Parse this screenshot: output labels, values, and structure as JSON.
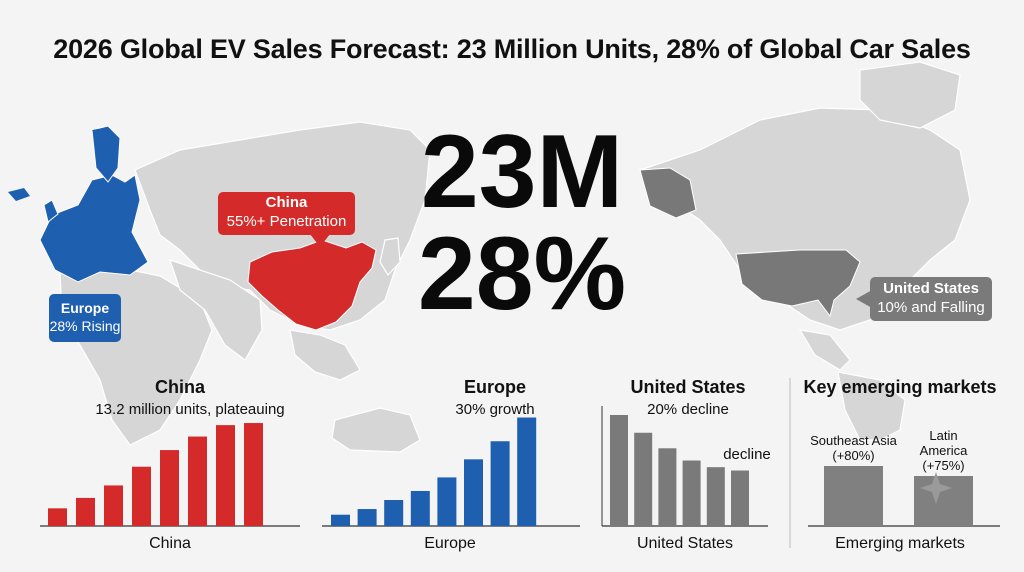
{
  "title": "2026 Global EV Sales Forecast: 23 Million Units, 28% of Global Car Sales",
  "headline": {
    "units": "23M",
    "share": "28%"
  },
  "callouts": {
    "china": {
      "name": "China",
      "text": "55%+ Penetration"
    },
    "europe": {
      "name": "Europe",
      "text": "28% Rising"
    },
    "us": {
      "name": "United States",
      "text": "10% and Falling"
    }
  },
  "colors": {
    "china": "#d42a2a",
    "europe": "#1f5fb0",
    "us": "#7a7a7a",
    "emerging": "#808080",
    "land": "#d6d6d6"
  },
  "chart_data": [
    {
      "type": "bar",
      "title": "China",
      "subtitle": "13.2 million units, plateauing",
      "xlabel": "China",
      "values": [
        1.7,
        2.7,
        3.9,
        5.7,
        7.3,
        8.6,
        9.7,
        9.9
      ],
      "ylim": [
        0,
        10
      ]
    },
    {
      "type": "bar",
      "title": "Europe",
      "subtitle": "30% growth",
      "xlabel": "Europe",
      "values": [
        1.0,
        1.5,
        2.3,
        3.1,
        4.3,
        5.9,
        7.5,
        9.6
      ],
      "ylim": [
        0,
        10
      ]
    },
    {
      "type": "bar",
      "title": "United States",
      "subtitle": "20% decline",
      "annotation": "decline",
      "xlabel": "United States",
      "values": [
        10.0,
        8.4,
        7.0,
        5.9,
        5.3,
        5.0
      ],
      "ylim": [
        0,
        10
      ]
    },
    {
      "type": "bar",
      "title": "Key emerging markets",
      "xlabel": "Emerging markets",
      "categories": [
        "Southeast Asia (+80%)",
        "Latin America (+75%)"
      ],
      "category_lines": [
        [
          "Southeast Asia",
          "(+80%)"
        ],
        [
          "Latin",
          "America",
          "(+75%)"
        ]
      ],
      "values": [
        6.0,
        5.0
      ],
      "ylim": [
        0,
        10
      ]
    }
  ]
}
